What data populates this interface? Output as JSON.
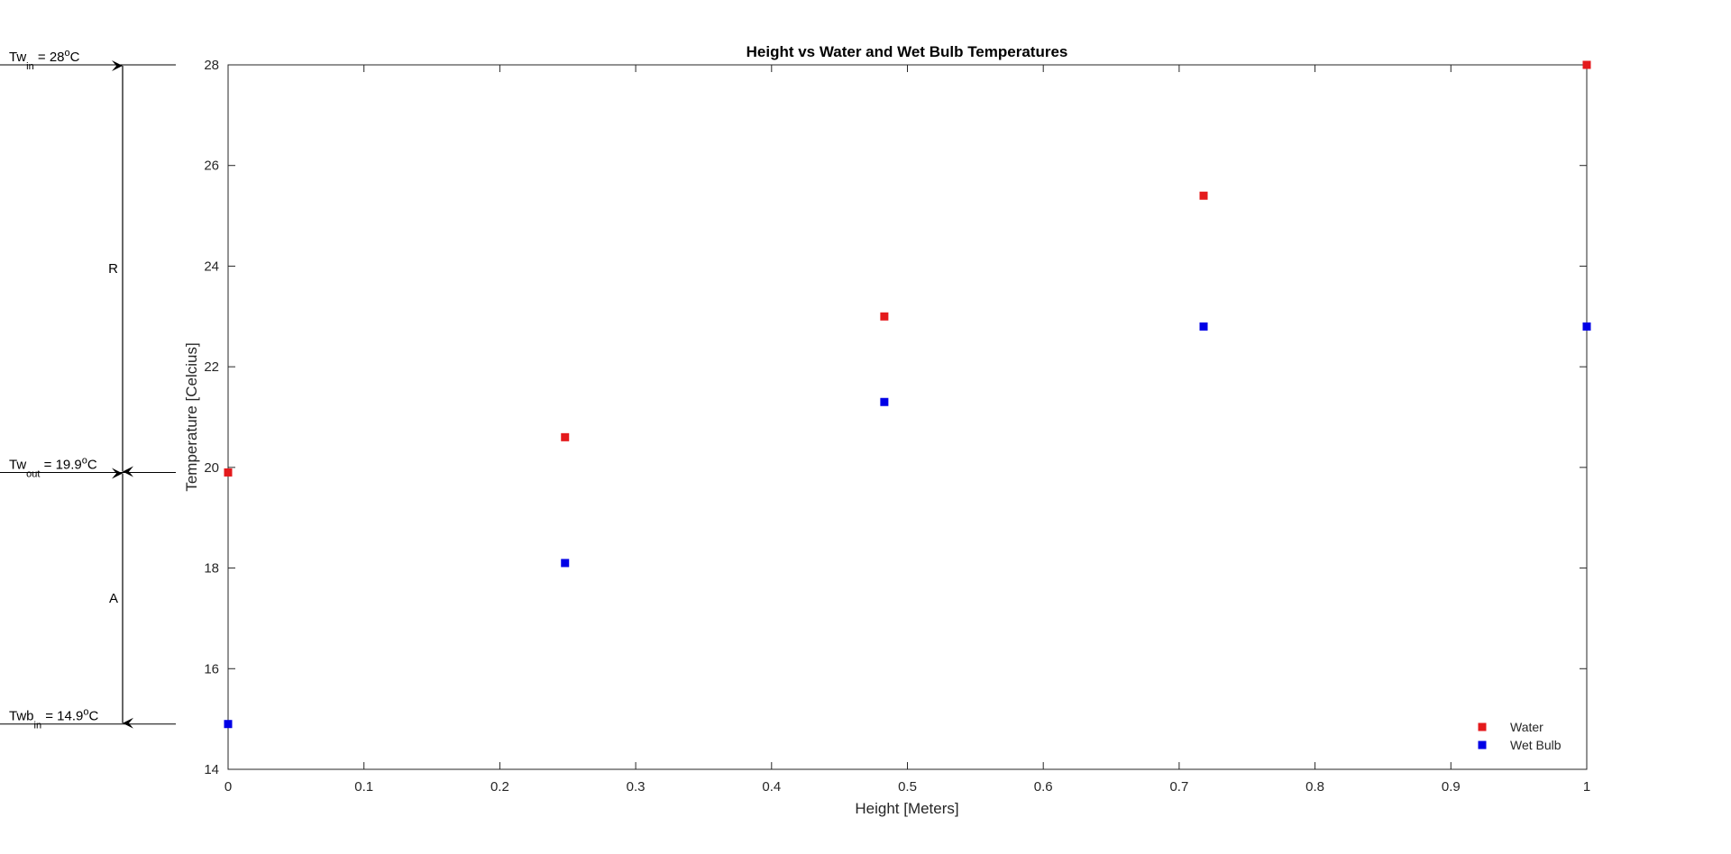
{
  "chart_data": {
    "type": "scatter",
    "title": "Height vs Water and Wet Bulb Temperatures",
    "xlabel": "Height [Meters]",
    "ylabel": "Temperature [Celcius]",
    "xlim": [
      0,
      1
    ],
    "ylim": [
      14,
      28
    ],
    "xticks": [
      "0",
      "0.1",
      "0.2",
      "0.3",
      "0.4",
      "0.5",
      "0.6",
      "0.7",
      "0.8",
      "0.9",
      "1"
    ],
    "yticks": [
      "14",
      "16",
      "18",
      "20",
      "22",
      "24",
      "26",
      "28"
    ],
    "grid": false,
    "legend_position": "bottom-right",
    "series": [
      {
        "name": "Water",
        "color": "#e41a1c",
        "marker": "square",
        "x": [
          0,
          0.248,
          0.483,
          0.718,
          1.0
        ],
        "y": [
          19.9,
          20.6,
          23.0,
          25.4,
          28.0
        ]
      },
      {
        "name": "Wet Bulb",
        "color": "#0000e6",
        "marker": "square",
        "x": [
          0,
          0.248,
          0.483,
          0.718,
          1.0
        ],
        "y": [
          14.9,
          18.1,
          21.3,
          22.8,
          22.8
        ]
      }
    ],
    "annotations": {
      "levels": [
        {
          "base": "Tw",
          "sub": "in",
          "rest": " = 28",
          "sup": "o",
          "unit": "C",
          "y": 28.0
        },
        {
          "base": "Tw",
          "sub": "out",
          "rest": " = 19.9",
          "sup": "o",
          "unit": "C",
          "y": 19.9
        },
        {
          "base": "Twb",
          "sub": "in",
          "rest": " = 14.9",
          "sup": "o",
          "unit": "C",
          "y": 14.9
        }
      ],
      "ranges": [
        {
          "label": "R",
          "from": 28.0,
          "to": 19.9
        },
        {
          "label": "A",
          "from": 19.9,
          "to": 14.9
        }
      ]
    }
  }
}
